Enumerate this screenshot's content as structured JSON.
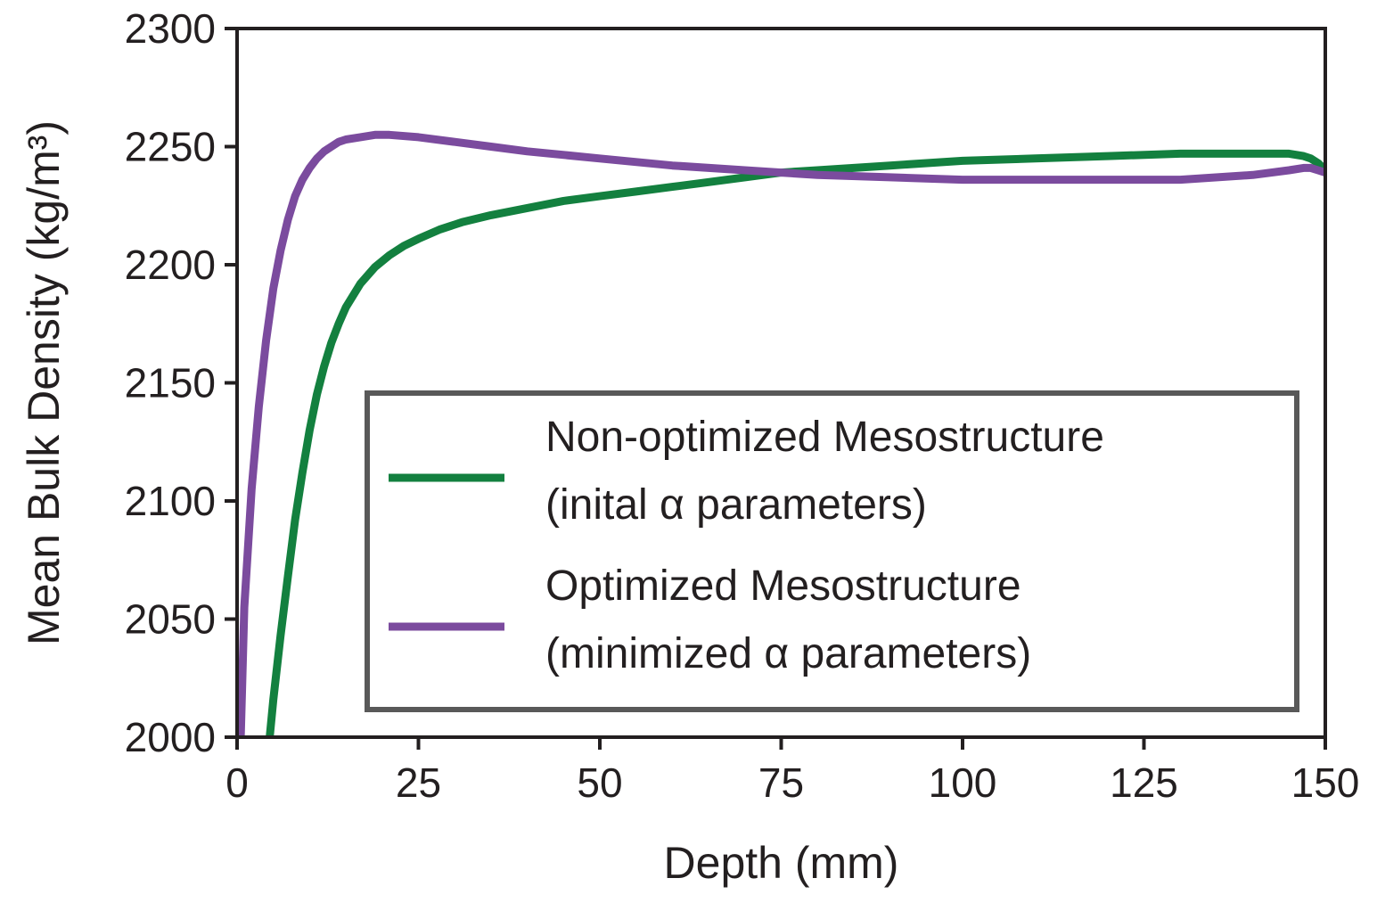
{
  "chart_data": {
    "type": "line",
    "title": "",
    "xlabel": "Depth (mm)",
    "ylabel": "Mean Bulk Density (kg/m³)",
    "xlim": [
      0,
      150
    ],
    "ylim": [
      2000,
      2300
    ],
    "xticks": [
      0,
      25,
      50,
      75,
      100,
      125,
      150
    ],
    "yticks": [
      2000,
      2050,
      2100,
      2150,
      2200,
      2250,
      2300
    ],
    "grid": false,
    "legend_position": "lower-right",
    "series": [
      {
        "name": "Non-optimized Mesostructure (inital α parameters)",
        "legend_lines": [
          "Non-optimized Mesostructure",
          "(inital α parameters)"
        ],
        "color": "#13803f",
        "x": [
          4.5,
          5,
          6,
          7,
          8,
          9,
          10,
          11,
          12,
          13,
          14,
          15,
          17,
          19,
          21,
          23,
          25,
          28,
          31,
          35,
          40,
          45,
          50,
          55,
          60,
          65,
          70,
          75,
          80,
          90,
          100,
          110,
          120,
          130,
          140,
          145,
          147,
          148,
          149,
          150
        ],
        "y": [
          2000,
          2016,
          2043,
          2068,
          2092,
          2112,
          2130,
          2145,
          2157,
          2167,
          2175,
          2182,
          2192,
          2199,
          2204,
          2208,
          2211,
          2215,
          2218,
          2221,
          2224,
          2227,
          2229,
          2231,
          2233,
          2235,
          2237,
          2239,
          2240,
          2242,
          2244,
          2245,
          2246,
          2247,
          2247,
          2247,
          2246,
          2245,
          2243,
          2240
        ]
      },
      {
        "name": "Optimized Mesostructure (minimized α parameters)",
        "legend_lines": [
          "Optimized Mesostructure",
          "(minimized α parameters)"
        ],
        "color": "#7b4b9e",
        "x": [
          0.5,
          1,
          2,
          3,
          4,
          5,
          6,
          7,
          8,
          9,
          10,
          11,
          12,
          13,
          14,
          15,
          17,
          19,
          21,
          25,
          30,
          35,
          40,
          50,
          60,
          70,
          75,
          80,
          90,
          100,
          110,
          120,
          130,
          140,
          145,
          147,
          148,
          149,
          150
        ],
        "y": [
          2000,
          2055,
          2105,
          2140,
          2168,
          2190,
          2206,
          2219,
          2229,
          2236,
          2241,
          2245,
          2248,
          2250,
          2252,
          2253,
          2254,
          2255,
          2255,
          2254,
          2252,
          2250,
          2248,
          2245,
          2242,
          2240,
          2239,
          2238,
          2237,
          2236,
          2236,
          2236,
          2236,
          2238,
          2240,
          2241,
          2241,
          2240,
          2239
        ]
      }
    ]
  }
}
